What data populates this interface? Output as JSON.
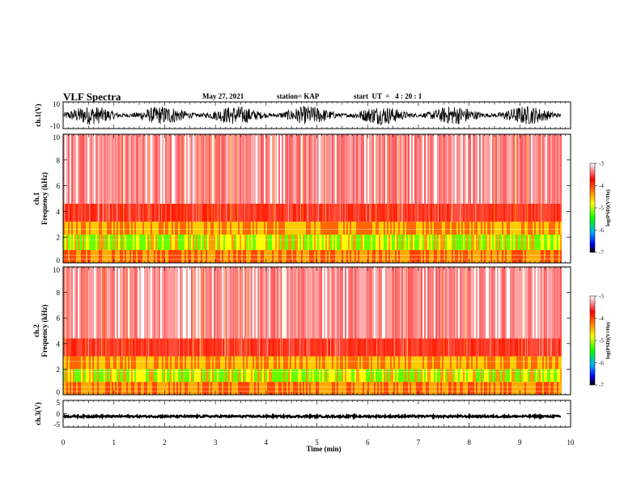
{
  "header": {
    "title": "VLF Spectra",
    "date": "May 27, 2021",
    "station": "station= KAP",
    "start": "start  UT  =   4 : 20 : 1"
  },
  "colors": {
    "waveform": "#000000",
    "spectrogram_background": "#ffffff",
    "colorbar_stops": [
      "#ffffff",
      "#ff0000",
      "#ffff00",
      "#00ff00",
      "#00aaff",
      "#0000ff",
      "#000000"
    ]
  },
  "chart_data": [
    {
      "type": "line",
      "name": "ch1-waveform",
      "ylabel": "ch.1(V)",
      "ylim": [
        -10,
        10
      ],
      "yticks": [
        10,
        -10
      ],
      "xlim": [
        0,
        9.8
      ],
      "description_level": "noise fluctuating roughly between -8 and +8 V"
    },
    {
      "type": "heatmap",
      "name": "ch1-spectrogram",
      "ylabel": "ch.1\nFrequency (kHz)",
      "ylim": [
        0,
        10
      ],
      "yticks": [
        0,
        2,
        4,
        6,
        8,
        10
      ],
      "xlim": [
        0,
        9.8
      ],
      "colorbar": {
        "label": "log(PSD)(V²/Hz)",
        "ticks": [
          -3,
          -4,
          -5,
          -6,
          -7
        ],
        "range": [
          -7,
          -3
        ]
      }
    },
    {
      "type": "heatmap",
      "name": "ch2-spectrogram",
      "ylabel": "ch.2\nFrequency (kHz)",
      "ylim": [
        0,
        10
      ],
      "yticks": [
        0,
        2,
        4,
        6,
        8,
        10
      ],
      "xlim": [
        0,
        9.8
      ],
      "colorbar": {
        "label": "log(PSD)(V²/Hz)",
        "ticks": [
          -3,
          -4,
          -5,
          -6,
          -7
        ],
        "range": [
          -7,
          -3
        ]
      }
    },
    {
      "type": "line",
      "name": "ch3-waveform",
      "ylabel": "ch.3(V)",
      "ylim": [
        -5,
        5
      ],
      "yticks": [
        5,
        0,
        -5
      ],
      "level": -1,
      "xlim": [
        0,
        9.8
      ]
    }
  ],
  "xaxis": {
    "label": "Time  (min)",
    "range": [
      0,
      10
    ],
    "ticks": [
      "0",
      "1",
      "2",
      "3",
      "4",
      "5",
      "6",
      "7",
      "8",
      "9",
      "10"
    ]
  }
}
